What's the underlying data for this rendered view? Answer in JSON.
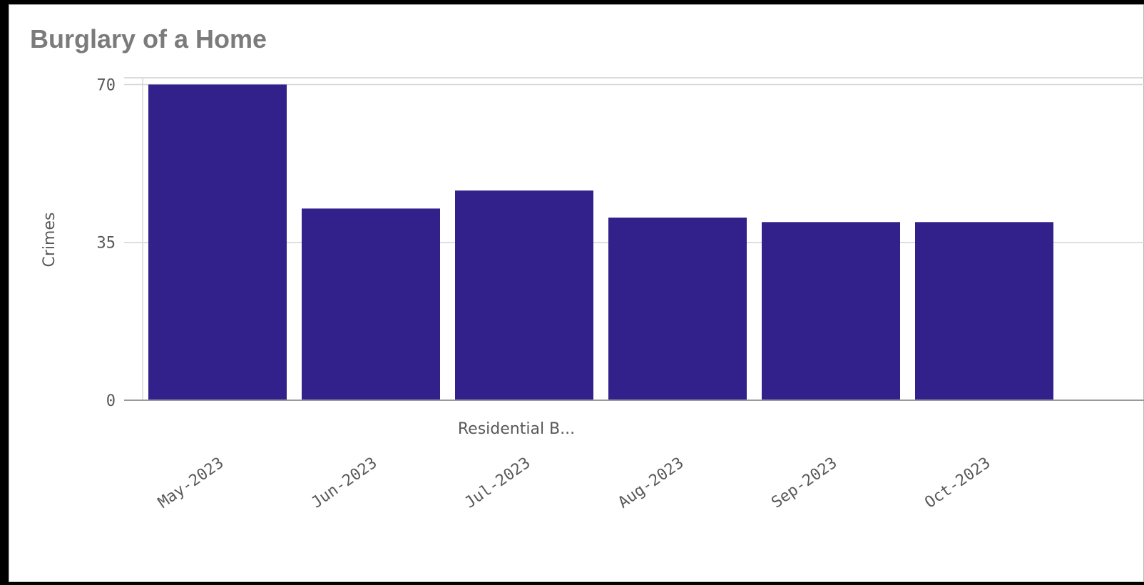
{
  "chart_data": {
    "type": "bar",
    "title": "Burglary of a Home",
    "ylabel": "Crimes",
    "dimension_label": "Residential B...",
    "categories": [
      "May-2023",
      "Jun-2023",
      "Jul-2023",
      "Aug-2023",
      "Sep-2023",
      "Oct-2023"
    ],
    "values": [
      70,
      42.5,
      46.5,
      40.5,
      39.5,
      39.5
    ],
    "yticks": [
      "0",
      "35",
      "70"
    ],
    "ylim": [
      0,
      71.5
    ],
    "grid": true,
    "bar_color": "#32218a",
    "legend": "none"
  }
}
